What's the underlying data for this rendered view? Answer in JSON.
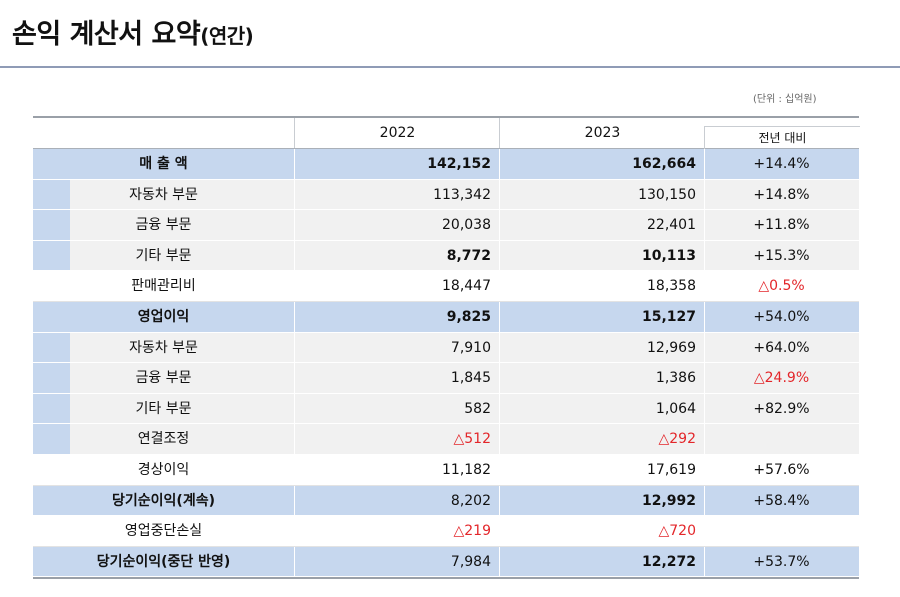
{
  "title": {
    "main": "손익 계산서 요약",
    "sub": "(연간)"
  },
  "unit_note": "(단위 : 십억원)",
  "header": {
    "year1": "2022",
    "year2": "2023",
    "yoy": "전년 대비"
  },
  "rows": [
    {
      "type": "main",
      "label": "매 출 액",
      "v2022": "142,152",
      "v2023": "162,664",
      "yoy": "+14.4%"
    },
    {
      "type": "sub",
      "label": "자동차 부문",
      "v2022": "113,342",
      "v2023": "130,150",
      "yoy": "+14.8%"
    },
    {
      "type": "sub",
      "label": "금융 부문",
      "v2022": "20,038",
      "v2023": "22,401",
      "yoy": "+11.8%"
    },
    {
      "type": "sub",
      "label": "기타 부문",
      "v2022": "8,772",
      "v2023": "10,113",
      "yoy": "+15.3%"
    },
    {
      "type": "plain",
      "label": "판매관리비",
      "v2022": "18,447",
      "v2023": "18,358",
      "yoy": "△0.5%"
    },
    {
      "type": "main",
      "label": "영업이익",
      "v2022": "9,825",
      "v2023": "15,127",
      "yoy": "+54.0%"
    },
    {
      "type": "sub",
      "label": "자동차 부문",
      "v2022": "7,910",
      "v2023": "12,969",
      "yoy": "+64.0%"
    },
    {
      "type": "sub",
      "label": "금융 부문",
      "v2022": "1,845",
      "v2023": "1,386",
      "yoy": "△24.9%"
    },
    {
      "type": "sub",
      "label": "기타 부문",
      "v2022": "582",
      "v2023": "1,064",
      "yoy": "+82.9%"
    },
    {
      "type": "sub",
      "label": "연결조정",
      "v2022": "△512",
      "v2023": "△292",
      "yoy": ""
    },
    {
      "type": "plain",
      "label": "경상이익",
      "v2022": "11,182",
      "v2023": "17,619",
      "yoy": "+57.6%"
    },
    {
      "type": "total",
      "label": "당기순이익(계속)",
      "v2022": "8,202",
      "v2023": "12,992",
      "yoy": "+58.4%"
    },
    {
      "type": "plain",
      "label": "영업중단손실",
      "v2022": "△219",
      "v2023": "△720",
      "yoy": ""
    },
    {
      "type": "total",
      "label": "당기순이익(중단 반영)",
      "v2022": "7,984",
      "v2023": "12,272",
      "yoy": "+53.7%"
    }
  ],
  "colors": {
    "highlight_blue": "#c6d7ee",
    "sub_gray": "#f1f1f1",
    "negative_red": "#e3262a"
  }
}
